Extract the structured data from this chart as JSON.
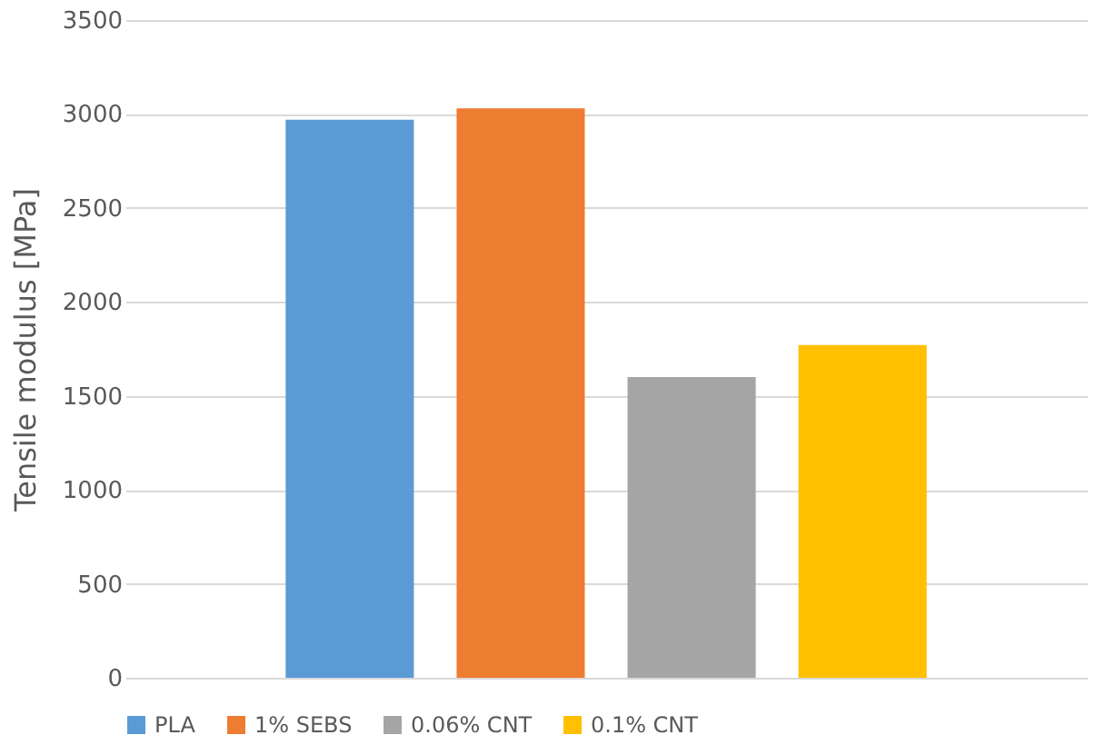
{
  "chart_data": {
    "type": "bar",
    "ylabel": "Tensile modulus [MPa]",
    "categories": [
      null
    ],
    "series": [
      {
        "name": "PLA",
        "color": "#5b9bd5",
        "values": [
          2970
        ]
      },
      {
        "name": "1% SEBS",
        "color": "#ed7d31",
        "values": [
          3030
        ]
      },
      {
        "name": "0.06% CNT",
        "color": "#a5a5a5",
        "values": [
          1600
        ]
      },
      {
        "name": "0.1% CNT",
        "color": "#ffc000",
        "values": [
          1770
        ]
      }
    ],
    "ylim": [
      0,
      3500
    ],
    "yticks": [
      0,
      500,
      1000,
      1500,
      2000,
      2500,
      3000,
      3500
    ],
    "grid": "y",
    "legend": "bottom"
  }
}
